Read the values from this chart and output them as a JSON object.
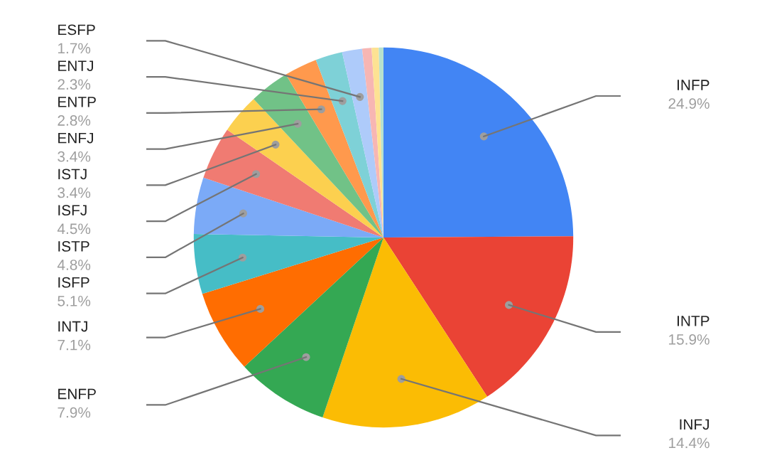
{
  "chart_data": {
    "type": "pie",
    "categories": [
      "INFP",
      "INTP",
      "INFJ",
      "ENFP",
      "INTJ",
      "ISFP",
      "ISTP",
      "ISFJ",
      "ISTJ",
      "ENFJ",
      "ENTP",
      "ENTJ",
      "ESFP",
      null,
      null,
      null
    ],
    "values": [
      24.9,
      15.9,
      14.4,
      7.9,
      7.1,
      5.1,
      4.8,
      4.5,
      3.4,
      3.4,
      2.8,
      2.3,
      1.7,
      0.8,
      0.6,
      0.4
    ],
    "value_labels": [
      "24.9%",
      "15.9%",
      "14.4%",
      "7.9%",
      "7.1%",
      "5.1%",
      "4.8%",
      "4.5%",
      "3.4%",
      "3.4%",
      "2.8%",
      "2.3%",
      "1.7%",
      null,
      null,
      null
    ],
    "colors": [
      "#4285f4",
      "#ea4335",
      "#fbbc04",
      "#34a853",
      "#ff6d01",
      "#46bdc6",
      "#7baaf7",
      "#f07b72",
      "#fcd04f",
      "#71c287",
      "#ff994d",
      "#7ed1d7",
      "#aecbfa",
      "#f7b6b3",
      "#fde293",
      "#b7e1cd"
    ],
    "legend": false
  }
}
